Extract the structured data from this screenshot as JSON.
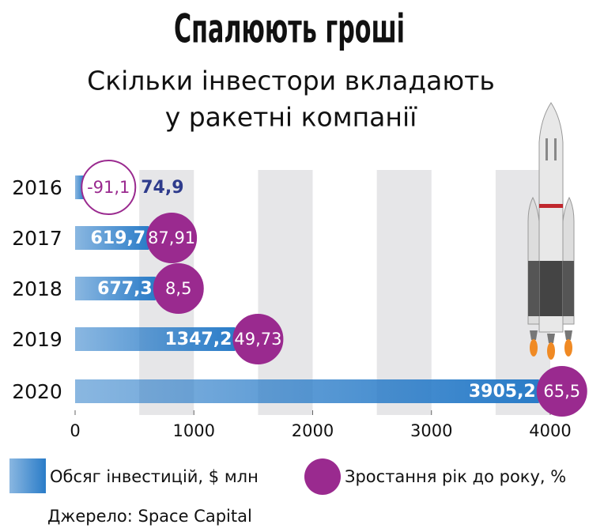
{
  "chart_data": {
    "type": "bar",
    "title": "Спалюють гроші",
    "subtitle": [
      "Скільки інвестори вкладають",
      "у ракетні компанії"
    ],
    "categories": [
      "2016",
      "2017",
      "2018",
      "2019",
      "2020"
    ],
    "series": [
      {
        "name": "Обсяг інвестицій, $ млн",
        "color": "#2a7cc8",
        "values": [
          74.9,
          619.7,
          677.3,
          1347.2,
          3905.2
        ],
        "value_labels": [
          "74,9",
          "619,7",
          "677,3",
          "1347,2",
          "3905,2"
        ]
      },
      {
        "name": "Зростання рік до року, %",
        "color": "#9a2a8f",
        "values": [
          -91.1,
          87.91,
          8.5,
          49.73,
          65.5
        ],
        "value_labels": [
          "-91,1",
          "87,91",
          "8,5",
          "49,73",
          "65,5"
        ]
      }
    ],
    "xlim": [
      0,
      4000
    ],
    "xticks": [
      0,
      1000,
      2000,
      3000,
      4000
    ],
    "source": "Джерело: Space Capital"
  }
}
